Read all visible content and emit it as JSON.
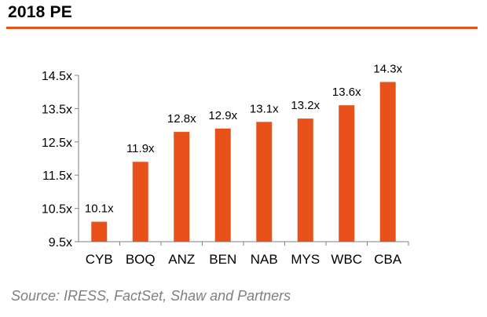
{
  "header": {
    "title": "2018 PE"
  },
  "footer": {
    "source": "Source: IRESS, FactSet, Shaw and Partners"
  },
  "colors": {
    "accent": "#e8521a",
    "axis": "#7f7f7f",
    "source_text": "#7f7f7f"
  },
  "chart_data": {
    "type": "bar",
    "title": "2018 PE",
    "xlabel": "",
    "ylabel": "",
    "categories": [
      "CYB",
      "BOQ",
      "ANZ",
      "BEN",
      "NAB",
      "MYS",
      "WBC",
      "CBA"
    ],
    "values": [
      10.1,
      11.9,
      12.8,
      12.9,
      13.1,
      13.2,
      13.6,
      14.3
    ],
    "data_labels": [
      "10.1x",
      "11.9x",
      "12.8x",
      "12.9x",
      "13.1x",
      "13.2x",
      "13.6x",
      "14.3x"
    ],
    "ylim": [
      9.5,
      14.5
    ],
    "yticks": [
      9.5,
      10.5,
      11.5,
      12.5,
      13.5,
      14.5
    ],
    "ytick_labels": [
      "9.5x",
      "10.5x",
      "11.5x",
      "12.5x",
      "13.5x",
      "14.5x"
    ],
    "grid": false,
    "legend": "none",
    "bar_color": "#e8521a"
  }
}
